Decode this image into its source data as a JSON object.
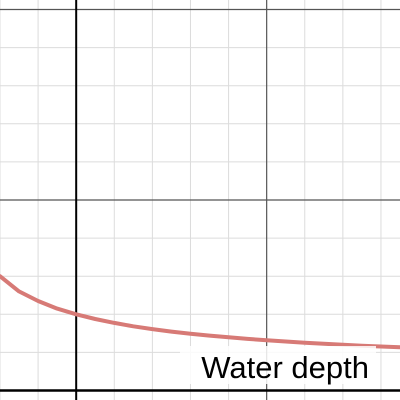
{
  "chart_data": {
    "type": "line",
    "title": "",
    "xlabel": "",
    "ylabel": "",
    "annotation": "Water depth",
    "grid": true,
    "grid_minor_step": 0.2,
    "grid_major_step": 1,
    "xlim": [
      -0.4,
      1.7
    ],
    "ylim": [
      -0.05,
      2.05
    ],
    "series": [
      {
        "color": "#d77a76",
        "x": [
          -0.4,
          -0.3,
          -0.2,
          -0.1,
          0.0,
          0.1,
          0.2,
          0.3,
          0.4,
          0.5,
          0.6,
          0.7,
          0.8,
          0.9,
          1.0,
          1.1,
          1.2,
          1.3,
          1.4,
          1.5,
          1.6,
          1.7
        ],
        "y": [
          0.6,
          0.52,
          0.47,
          0.43,
          0.4,
          0.375,
          0.355,
          0.337,
          0.322,
          0.309,
          0.298,
          0.288,
          0.279,
          0.271,
          0.264,
          0.257,
          0.251,
          0.245,
          0.24,
          0.235,
          0.231,
          0.227
        ]
      }
    ],
    "colors": {
      "minor_grid": "#dcdcdc",
      "major_grid": "#555555",
      "axis": "#000000"
    }
  }
}
